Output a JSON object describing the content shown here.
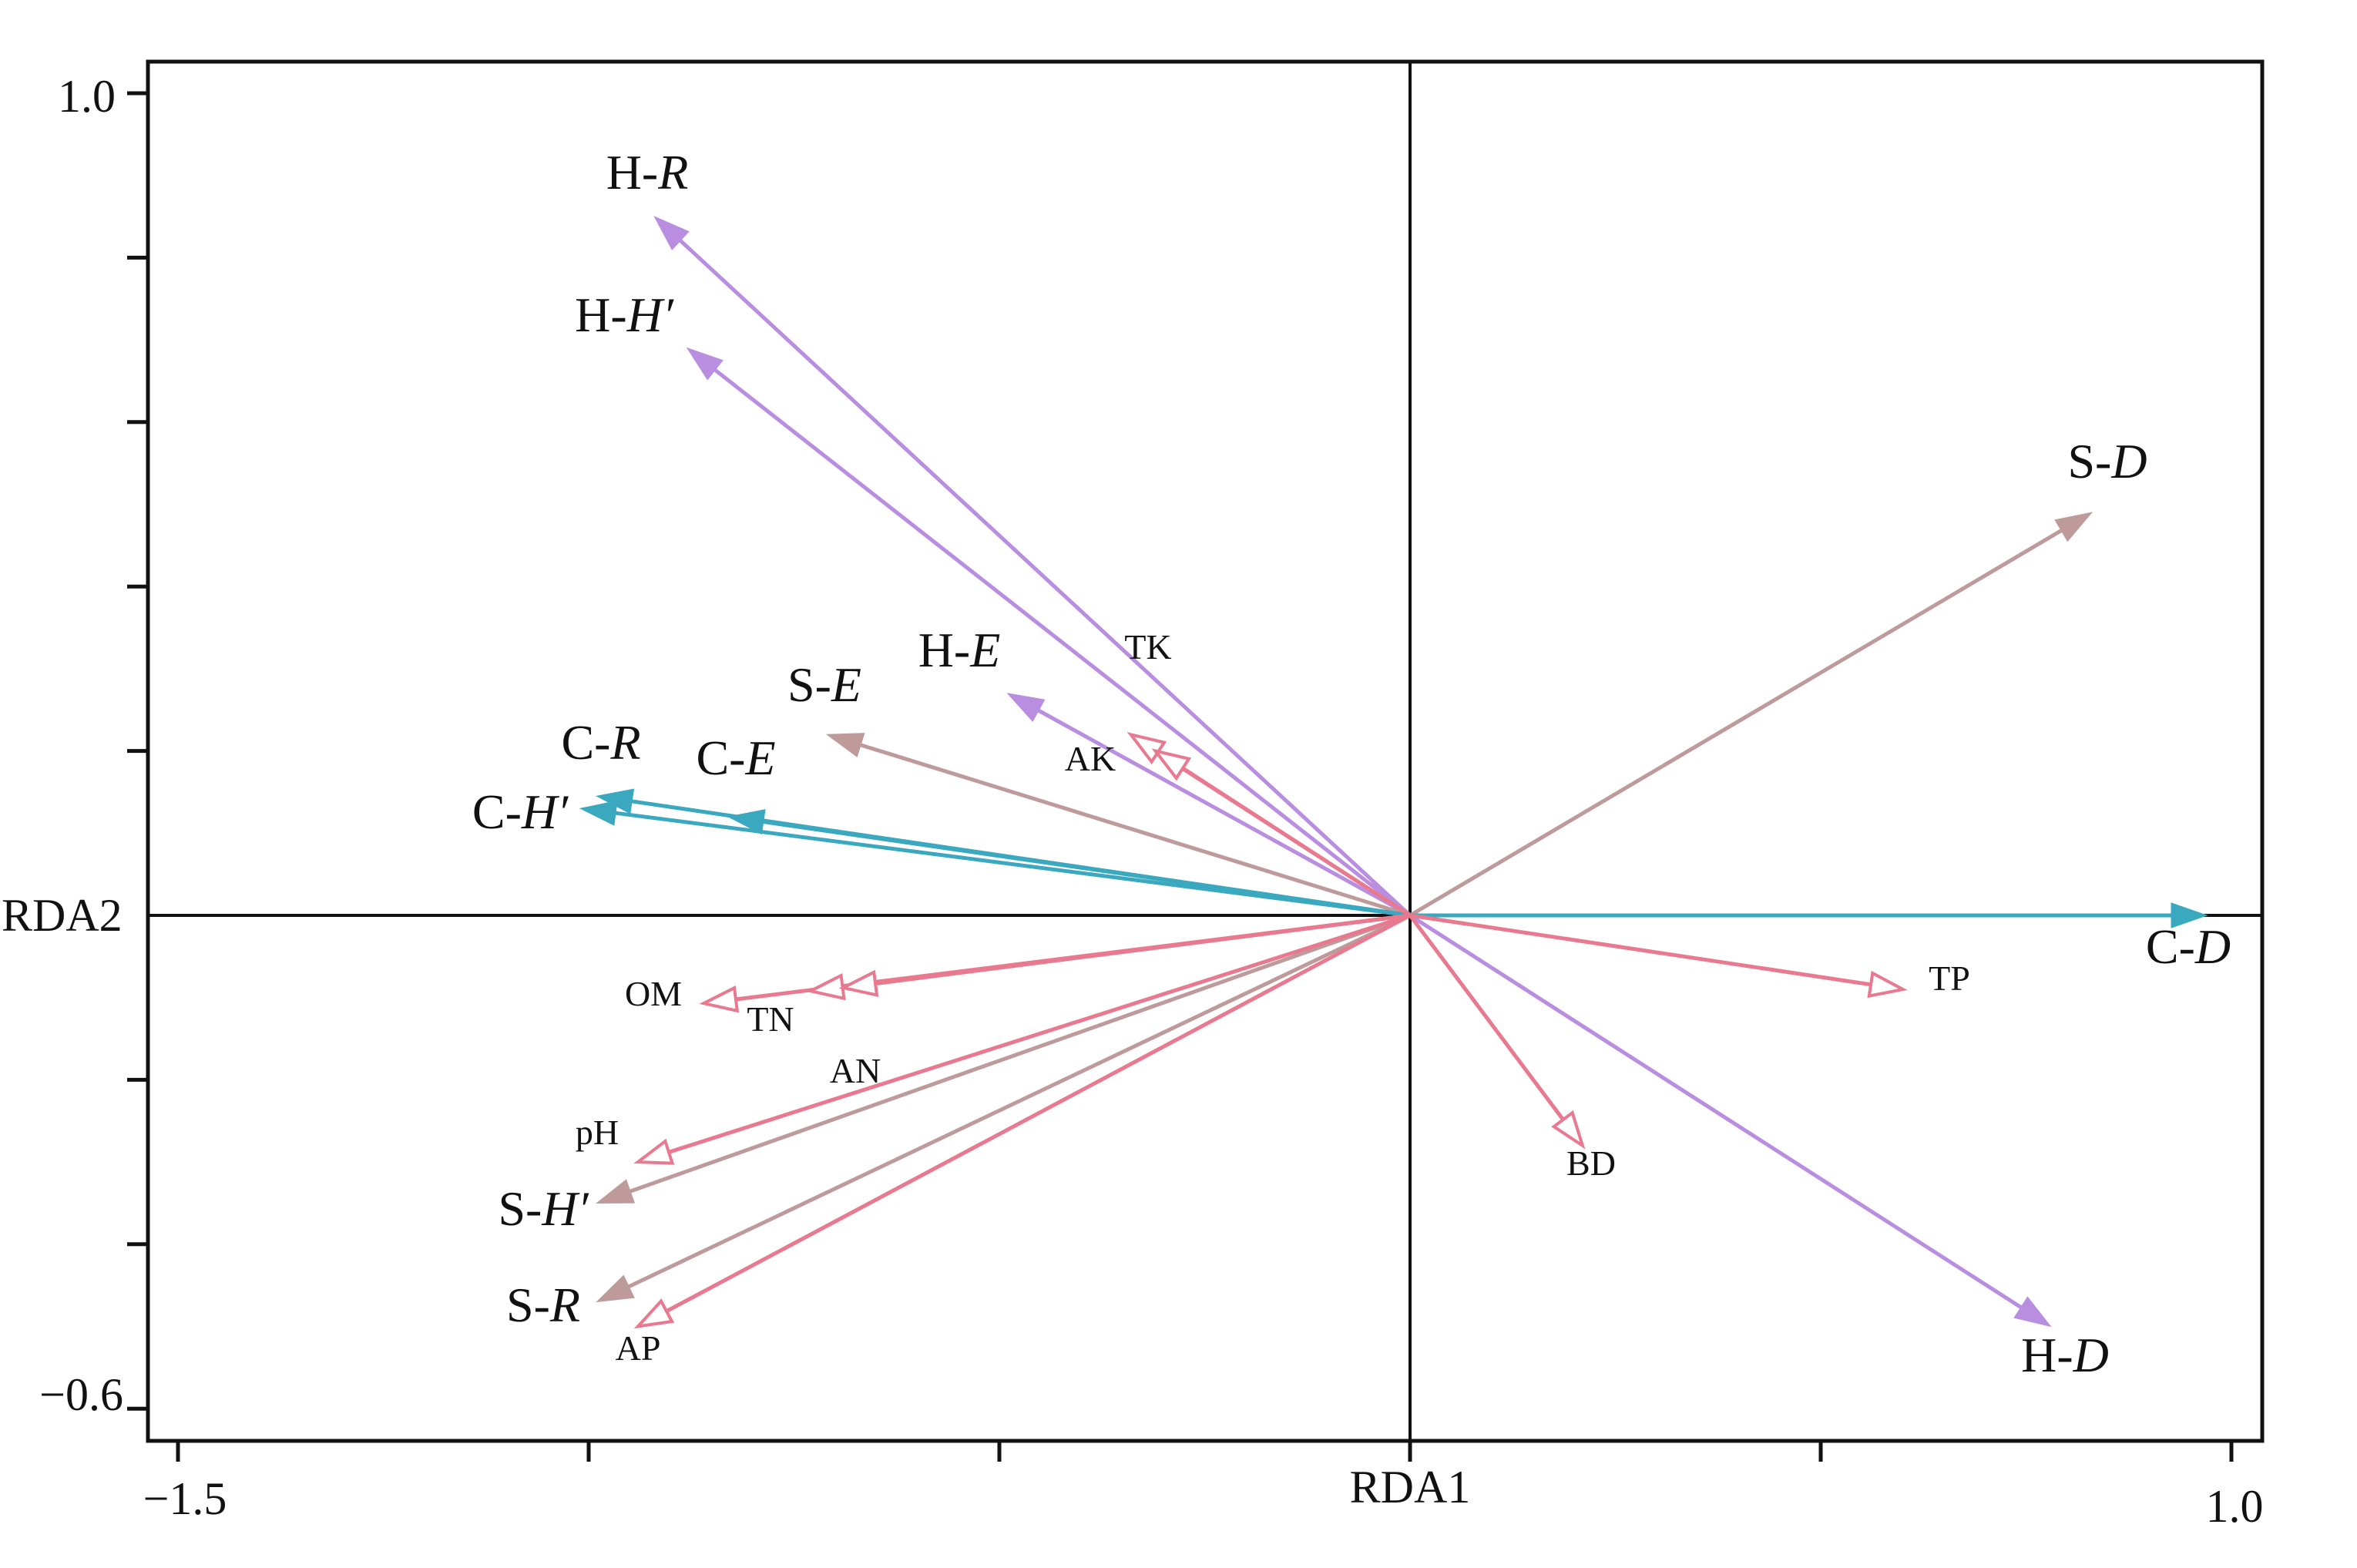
{
  "chart_data": {
    "type": "biplot",
    "xlabel": "RDA1",
    "ylabel": "RDA2",
    "xlim": [
      -1.5,
      1.0
    ],
    "ylim": [
      -0.6,
      1.0
    ],
    "x_tick_labels": [
      "−1.5",
      "1.0"
    ],
    "y_tick_labels": [
      "1.0",
      "−0.6"
    ],
    "colors": {
      "purple": "#b98ee0",
      "taupe": "#bf9a9a",
      "teal": "#3aa8bf",
      "pink": "#e8798e"
    },
    "response_arrows": [
      {
        "label": "H-",
        "italic": "R",
        "x": -0.92,
        "y": 0.85,
        "color": "purple"
      },
      {
        "label": "H-",
        "italic": "H′",
        "x": -0.88,
        "y": 0.69,
        "color": "purple"
      },
      {
        "label": "H-",
        "italic": "E",
        "x": -0.49,
        "y": 0.27,
        "color": "purple"
      },
      {
        "label": "H-",
        "italic": "D",
        "x": 0.78,
        "y": -0.5,
        "color": "purple"
      },
      {
        "label": "S-",
        "italic": "D",
        "x": 0.83,
        "y": 0.49,
        "color": "taupe"
      },
      {
        "label": "S-",
        "italic": "E",
        "x": -0.71,
        "y": 0.22,
        "color": "taupe"
      },
      {
        "label": "S-",
        "italic": "H′",
        "x": -0.99,
        "y": -0.35,
        "color": "taupe"
      },
      {
        "label": "S-",
        "italic": "R",
        "x": -0.99,
        "y": -0.47,
        "color": "taupe"
      },
      {
        "label": "C-",
        "italic": "R",
        "x": -0.99,
        "y": 0.145,
        "color": "teal"
      },
      {
        "label": "C-",
        "italic": "E",
        "x": -0.83,
        "y": 0.12,
        "color": "teal"
      },
      {
        "label": "C-",
        "italic": "H′",
        "x": -1.01,
        "y": 0.13,
        "color": "teal"
      },
      {
        "label": "C-",
        "italic": "D",
        "x": 0.97,
        "y": 0.0,
        "color": "teal"
      }
    ],
    "environment_arrows": [
      {
        "label": "TK",
        "x": -0.34,
        "y": 0.22,
        "color": "pink"
      },
      {
        "label": "AK",
        "x": -0.31,
        "y": 0.2,
        "color": "pink"
      },
      {
        "label": "OM",
        "x": -0.86,
        "y": -0.107,
        "color": "pink"
      },
      {
        "label": "TN",
        "x": -0.73,
        "y": -0.092,
        "color": "pink"
      },
      {
        "label": "AN",
        "x": -0.69,
        "y": -0.088,
        "color": "pink"
      },
      {
        "label": "pH",
        "x": -0.94,
        "y": -0.3,
        "color": "pink"
      },
      {
        "label": "AP",
        "x": -0.94,
        "y": -0.5,
        "color": "pink"
      },
      {
        "label": "TP",
        "x": 0.6,
        "y": -0.09,
        "color": "pink"
      },
      {
        "label": "BD",
        "x": 0.21,
        "y": -0.28,
        "color": "pink"
      }
    ]
  }
}
